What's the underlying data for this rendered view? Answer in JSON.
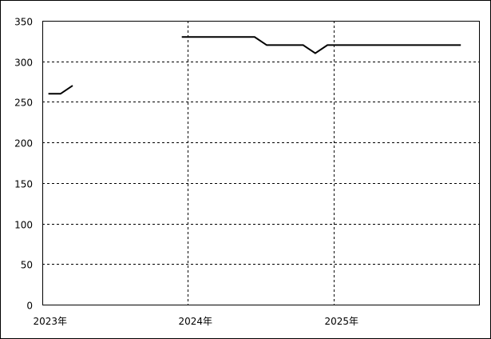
{
  "chart_data": {
    "type": "line",
    "title": "",
    "xlabel": "",
    "ylabel": "",
    "ylim": [
      0,
      350
    ],
    "yticks": [
      0,
      50,
      100,
      150,
      200,
      250,
      300,
      350
    ],
    "xrange": [
      "2023-01",
      "2025-12"
    ],
    "xtick_labels": [
      {
        "month": "2023-01",
        "label": "2023年"
      },
      {
        "month": "2024-01",
        "label": "2024年"
      },
      {
        "month": "2025-01",
        "label": "2025年"
      }
    ],
    "grid": true,
    "line_color": "#000000",
    "series": [
      {
        "points": [
          [
            "2023-01",
            260
          ],
          [
            "2023-02",
            260
          ],
          [
            "2023-03",
            270
          ],
          [
            "2023-04",
            null
          ],
          [
            "2023-05",
            null
          ],
          [
            "2023-06",
            null
          ],
          [
            "2023-07",
            null
          ],
          [
            "2023-08",
            null
          ],
          [
            "2023-09",
            null
          ],
          [
            "2023-10",
            null
          ],
          [
            "2023-11",
            null
          ],
          [
            "2023-12",
            330
          ],
          [
            "2024-01",
            330
          ],
          [
            "2024-02",
            330
          ],
          [
            "2024-03",
            330
          ],
          [
            "2024-04",
            330
          ],
          [
            "2024-05",
            330
          ],
          [
            "2024-06",
            330
          ],
          [
            "2024-07",
            320
          ],
          [
            "2024-08",
            320
          ],
          [
            "2024-09",
            320
          ],
          [
            "2024-10",
            320
          ],
          [
            "2024-11",
            310
          ],
          [
            "2024-12",
            320
          ],
          [
            "2025-01",
            320
          ],
          [
            "2025-02",
            320
          ],
          [
            "2025-03",
            320
          ],
          [
            "2025-04",
            320
          ],
          [
            "2025-05",
            320
          ],
          [
            "2025-06",
            320
          ],
          [
            "2025-07",
            320
          ],
          [
            "2025-08",
            320
          ],
          [
            "2025-09",
            320
          ],
          [
            "2025-10",
            320
          ],
          [
            "2025-11",
            320
          ]
        ]
      }
    ]
  }
}
